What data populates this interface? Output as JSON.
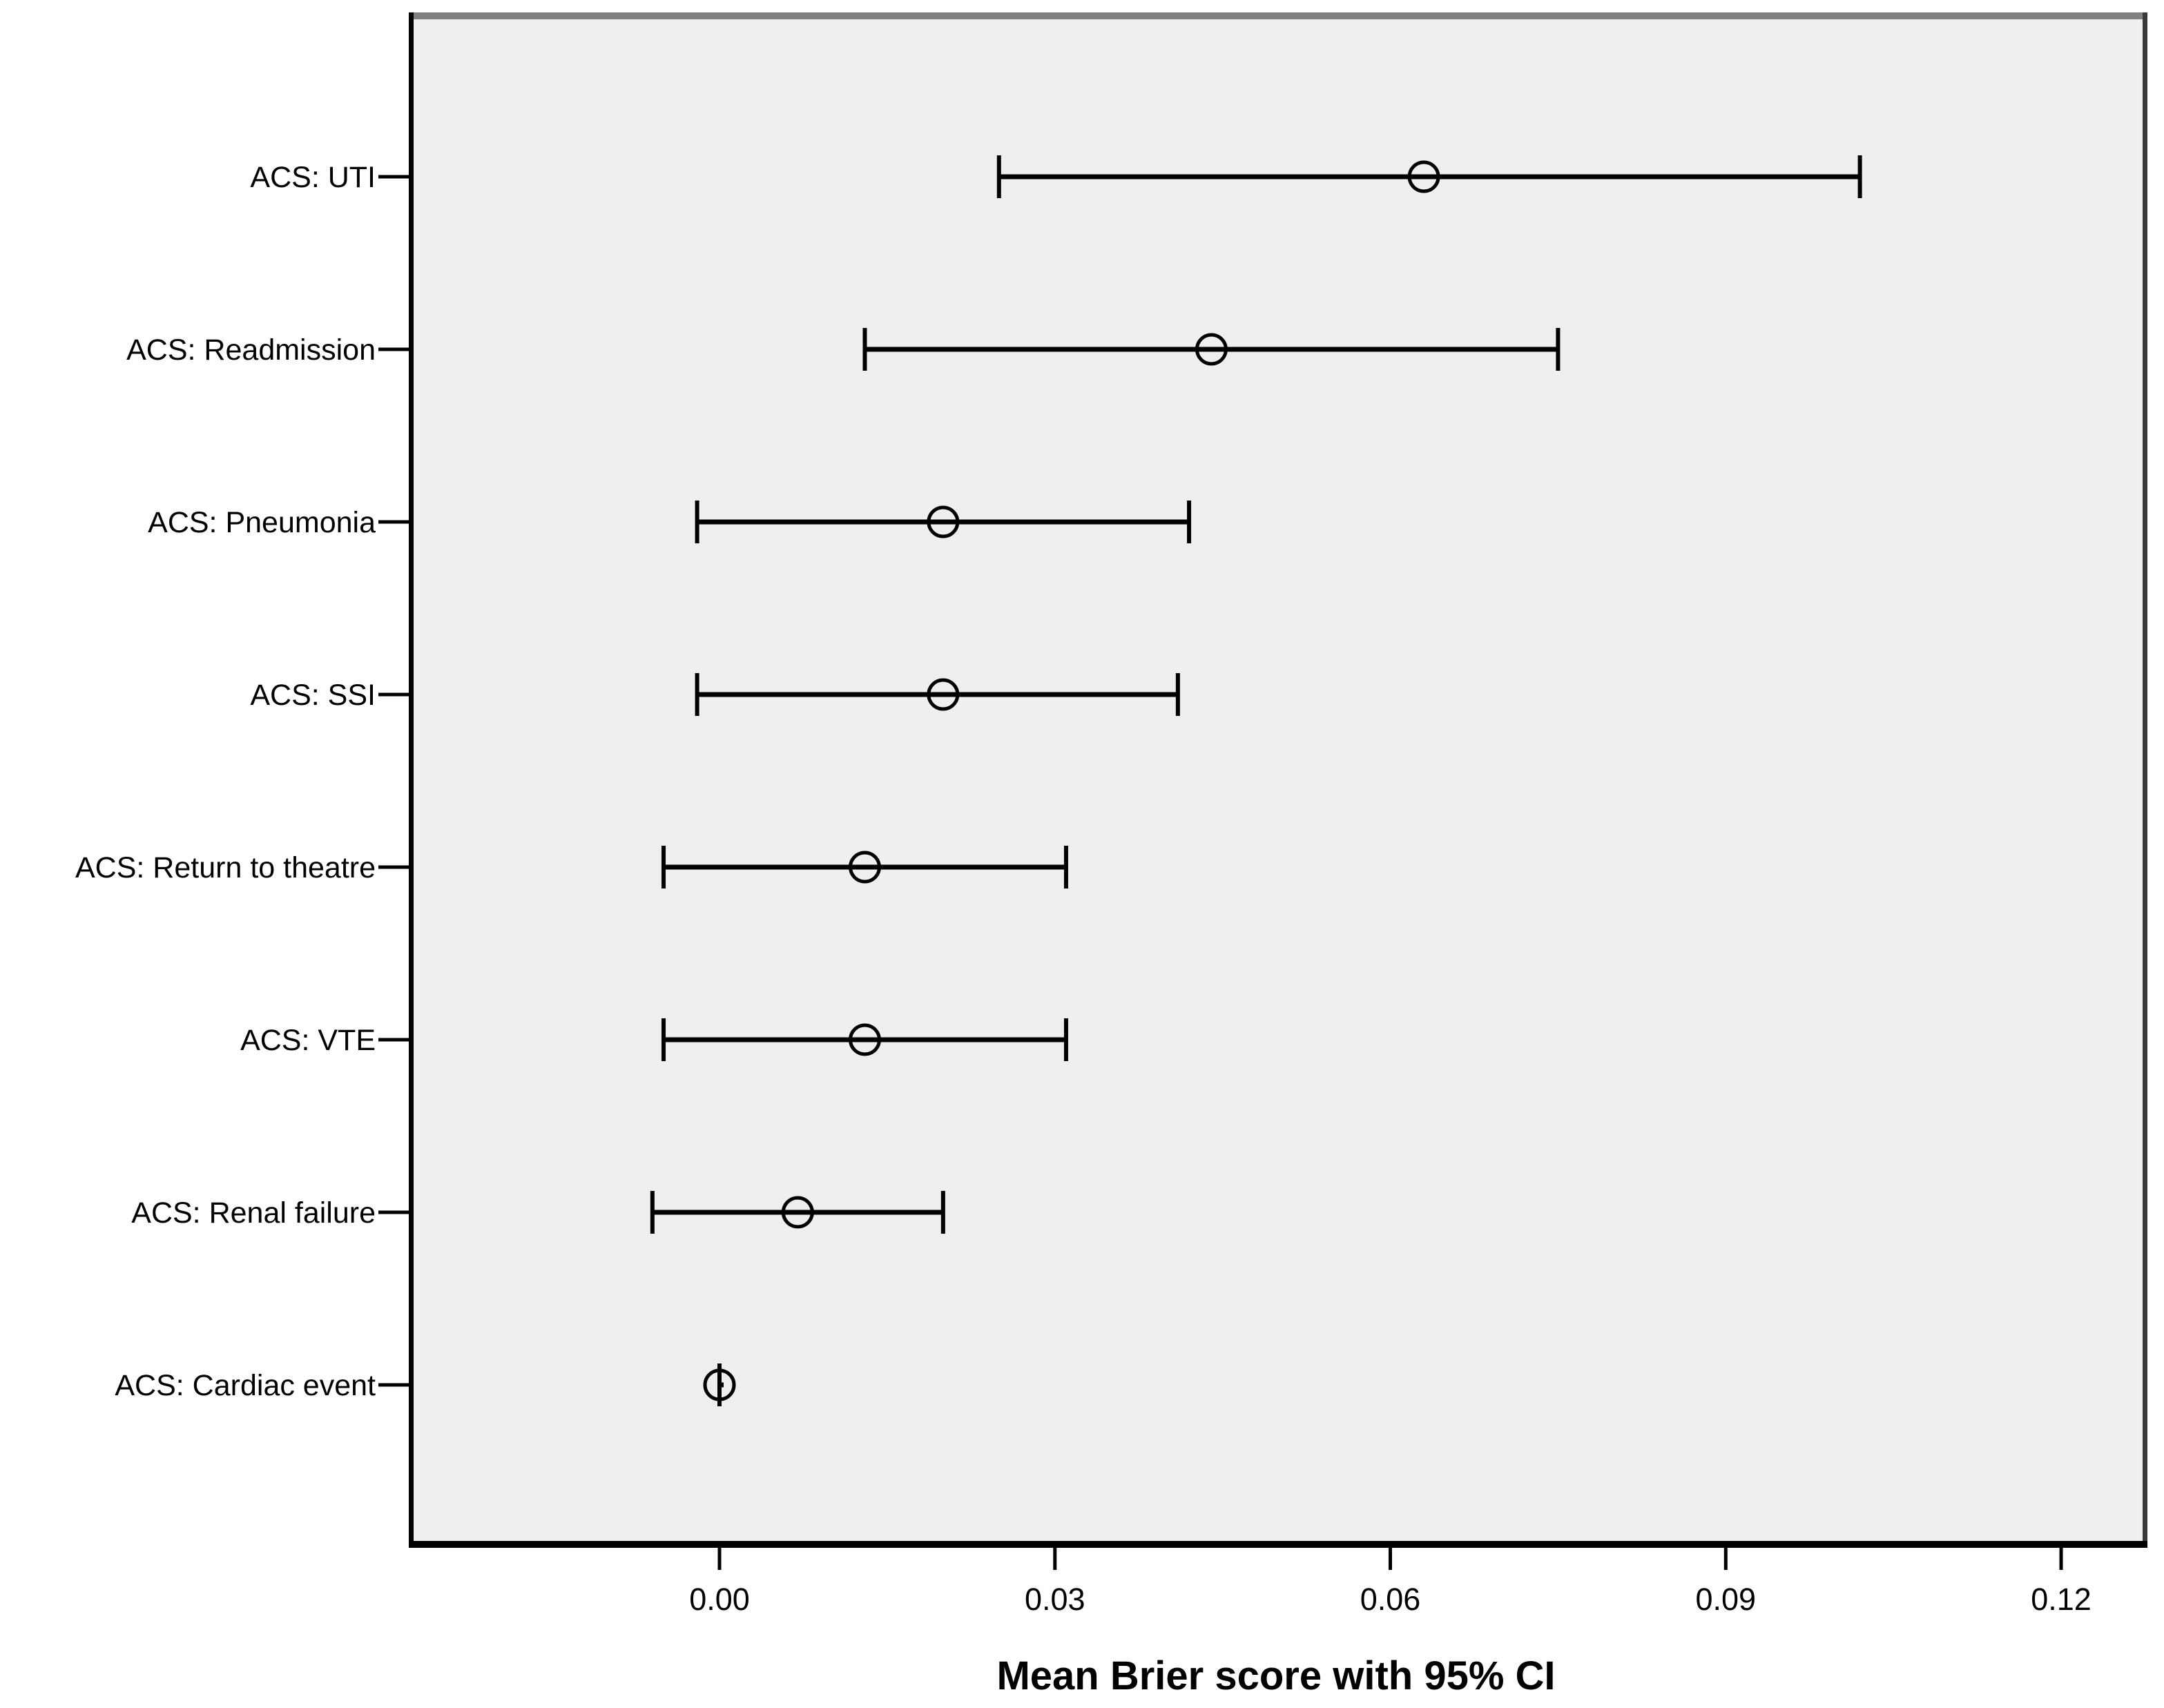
{
  "figure": {
    "background": "#ffffff",
    "plot_background": "#efefef",
    "border_top_color": "#808080",
    "border_right_color": "#3a3a3a",
    "border_left_color": "#000000",
    "border_bottom_color": "#000000",
    "mark_color": "#000000"
  },
  "chart_data": {
    "type": "scatter",
    "subtype": "horizontal-error-bar",
    "title": "",
    "xlabel": "Mean Brier score with 95% CI",
    "ylabel": "",
    "marker": "open-circle",
    "grid": false,
    "legend": false,
    "categories": [
      "ACS: UTI",
      "ACS: Readmission",
      "ACS: Pneumonia",
      "ACS: SSI",
      "ACS: Return to theatre",
      "ACS: VTE",
      "ACS: Renal failure",
      "ACS: Cardiac event"
    ],
    "series": [
      {
        "name": "Mean Brier score with 95% CI",
        "means": [
          0.063,
          0.044,
          0.02,
          0.02,
          0.013,
          0.013,
          0.007,
          0.0
        ],
        "ci_low": [
          0.025,
          0.013,
          -0.002,
          -0.002,
          -0.005,
          -0.005,
          -0.006,
          0.0
        ],
        "ci_high": [
          0.102,
          0.075,
          0.042,
          0.041,
          0.031,
          0.031,
          0.02,
          0.0
        ]
      }
    ],
    "x_ticks": [
      "0.00",
      "0.03",
      "0.06",
      "0.09",
      "0.12"
    ],
    "x_tick_values": [
      0.0,
      0.03,
      0.06,
      0.09,
      0.12
    ],
    "xlim": [
      -0.0278,
      0.1275
    ]
  }
}
